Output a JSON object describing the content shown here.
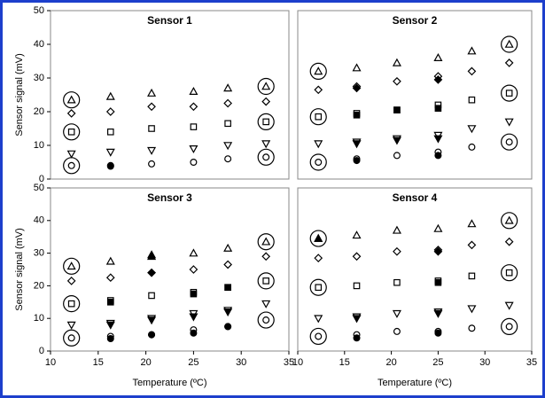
{
  "chart_data": [
    {
      "type": "scatter",
      "title": "Sensor 1",
      "y_label": "Sensor signal (mV)",
      "x": [
        12.2,
        16.3,
        20.6,
        25,
        28.6,
        32.6
      ],
      "xlim": [
        10,
        35
      ],
      "ylim": [
        0,
        50
      ],
      "yticks": [
        0,
        10,
        20,
        30,
        40,
        50
      ],
      "series": [
        {
          "marker": "triangle",
          "color": "#000000",
          "filled": false,
          "circled_ends": true,
          "values": [
            23.5,
            24.5,
            25.5,
            26,
            27,
            27.5
          ]
        },
        {
          "marker": "diamond",
          "color": "#000000",
          "filled": false,
          "circled_ends": false,
          "values": [
            19.5,
            20,
            21.5,
            21.5,
            22.5,
            23
          ]
        },
        {
          "marker": "square",
          "color": "#000000",
          "filled": false,
          "circled_ends": true,
          "values": [
            14,
            14,
            15,
            15.5,
            16.5,
            17
          ]
        },
        {
          "marker": "down-triangle",
          "color": "#000000",
          "filled": false,
          "circled_ends": false,
          "values": [
            7.5,
            8,
            8.5,
            9,
            10,
            10.5
          ]
        },
        {
          "marker": "circle",
          "color": "#000000",
          "filled": false,
          "circled_ends": true,
          "values": [
            4,
            4,
            4.5,
            5,
            6,
            6.5
          ]
        },
        {
          "marker": "circle",
          "color": "#000000",
          "filled": true,
          "circled_ends": false,
          "values": [
            null,
            3.8,
            null,
            null,
            null,
            null
          ]
        }
      ]
    },
    {
      "type": "scatter",
      "title": "Sensor 2",
      "x": [
        12.2,
        16.3,
        20.6,
        25,
        28.6,
        32.6
      ],
      "xlim": [
        10,
        35
      ],
      "ylim": [
        0,
        50
      ],
      "series": [
        {
          "marker": "triangle",
          "color": "#000000",
          "filled": false,
          "circled_ends": true,
          "values": [
            32,
            33,
            34.5,
            36,
            38,
            40
          ]
        },
        {
          "marker": "diamond",
          "color": "#000000",
          "filled": false,
          "circled_ends": false,
          "values": [
            26.5,
            27.5,
            29,
            30.5,
            32,
            34.5
          ]
        },
        {
          "marker": "square",
          "color": "#000000",
          "filled": false,
          "circled_ends": true,
          "values": [
            18.5,
            19.5,
            20.5,
            22,
            23.5,
            25.5
          ]
        },
        {
          "marker": "down-triangle",
          "color": "#000000",
          "filled": false,
          "circled_ends": false,
          "values": [
            10.5,
            11,
            12,
            13,
            15,
            17
          ]
        },
        {
          "marker": "circle",
          "color": "#000000",
          "filled": false,
          "circled_ends": true,
          "values": [
            5,
            6,
            7,
            8,
            9.5,
            11
          ]
        },
        {
          "marker": "diamond",
          "color": "#000000",
          "filled": true,
          "circled_ends": false,
          "values": [
            null,
            27,
            null,
            29.5,
            null,
            null
          ]
        },
        {
          "marker": "square",
          "color": "#000000",
          "filled": true,
          "circled_ends": false,
          "values": [
            null,
            19,
            20.5,
            21,
            null,
            null
          ]
        },
        {
          "marker": "down-triangle",
          "color": "#000000",
          "filled": true,
          "circled_ends": false,
          "values": [
            null,
            10.5,
            11.5,
            12,
            null,
            null
          ]
        },
        {
          "marker": "circle",
          "color": "#000000",
          "filled": true,
          "circled_ends": false,
          "values": [
            null,
            5.5,
            null,
            7,
            null,
            null
          ]
        }
      ]
    },
    {
      "type": "scatter",
      "title": "Sensor 3",
      "y_label": "Sensor signal (mV)",
      "x_label": "Temperature (ºC)",
      "x": [
        12.2,
        16.3,
        20.6,
        25,
        28.6,
        32.6
      ],
      "xlim": [
        10,
        35
      ],
      "ylim": [
        0,
        50
      ],
      "xticks": [
        10,
        15,
        20,
        25,
        30,
        35
      ],
      "yticks": [
        0,
        10,
        20,
        30,
        40,
        50
      ],
      "series": [
        {
          "marker": "triangle",
          "color": "#000000",
          "filled": false,
          "circled_ends": true,
          "values": [
            26,
            27.5,
            29.5,
            30,
            31.5,
            33.5
          ]
        },
        {
          "marker": "diamond",
          "color": "#000000",
          "filled": false,
          "circled_ends": false,
          "values": [
            21.5,
            22.5,
            24,
            25,
            26.5,
            29
          ]
        },
        {
          "marker": "square",
          "color": "#000000",
          "filled": false,
          "circled_ends": true,
          "values": [
            14.5,
            15.5,
            17,
            18,
            19.5,
            21.5
          ]
        },
        {
          "marker": "down-triangle",
          "color": "#000000",
          "filled": false,
          "circled_ends": false,
          "values": [
            8,
            8.5,
            10,
            11.5,
            12.5,
            14.5
          ]
        },
        {
          "marker": "circle",
          "color": "#000000",
          "filled": false,
          "circled_ends": true,
          "values": [
            4,
            4.5,
            5,
            6.5,
            7.5,
            9.5
          ]
        },
        {
          "marker": "triangle",
          "color": "#000000",
          "filled": true,
          "circled_ends": false,
          "values": [
            null,
            null,
            29,
            null,
            null,
            null
          ]
        },
        {
          "marker": "diamond",
          "color": "#000000",
          "filled": true,
          "circled_ends": false,
          "values": [
            null,
            null,
            24,
            null,
            null,
            null
          ]
        },
        {
          "marker": "square",
          "color": "#000000",
          "filled": true,
          "circled_ends": false,
          "values": [
            null,
            15,
            null,
            17.5,
            19.5,
            null
          ]
        },
        {
          "marker": "down-triangle",
          "color": "#000000",
          "filled": true,
          "circled_ends": false,
          "values": [
            null,
            8,
            9.5,
            10.5,
            12,
            null
          ]
        },
        {
          "marker": "circle",
          "color": "#000000",
          "filled": true,
          "circled_ends": false,
          "values": [
            null,
            3.8,
            5,
            5.5,
            7.5,
            null
          ]
        }
      ]
    },
    {
      "type": "scatter",
      "title": "Sensor 4",
      "x_label": "Temperature (ºC)",
      "x": [
        12.2,
        16.3,
        20.6,
        25,
        28.6,
        32.6
      ],
      "xlim": [
        10,
        35
      ],
      "ylim": [
        0,
        50
      ],
      "xticks": [
        10,
        15,
        20,
        25,
        30,
        35
      ],
      "series": [
        {
          "marker": "triangle",
          "color": "#000000",
          "filled": false,
          "circled_ends": true,
          "values": [
            34.5,
            35.5,
            37,
            37.5,
            39,
            40
          ]
        },
        {
          "marker": "diamond",
          "color": "#000000",
          "filled": false,
          "circled_ends": false,
          "values": [
            28.5,
            29,
            30.5,
            31,
            32.5,
            33.5
          ]
        },
        {
          "marker": "square",
          "color": "#000000",
          "filled": false,
          "circled_ends": true,
          "values": [
            19.5,
            20,
            21,
            21.5,
            23,
            24
          ]
        },
        {
          "marker": "down-triangle",
          "color": "#000000",
          "filled": false,
          "circled_ends": false,
          "values": [
            10,
            10.5,
            11.5,
            12,
            13,
            14
          ]
        },
        {
          "marker": "circle",
          "color": "#000000",
          "filled": false,
          "circled_ends": true,
          "values": [
            4.5,
            5,
            6,
            6,
            7,
            7.5
          ]
        },
        {
          "marker": "triangle",
          "color": "#000000",
          "filled": true,
          "circled_ends": false,
          "values": [
            34.5,
            null,
            null,
            null,
            null,
            null
          ]
        },
        {
          "marker": "diamond",
          "color": "#000000",
          "filled": true,
          "circled_ends": false,
          "values": [
            null,
            null,
            null,
            30.5,
            null,
            null
          ]
        },
        {
          "marker": "square",
          "color": "#000000",
          "filled": true,
          "circled_ends": false,
          "values": [
            null,
            null,
            null,
            21,
            null,
            null
          ]
        },
        {
          "marker": "down-triangle",
          "color": "#000000",
          "filled": true,
          "circled_ends": false,
          "values": [
            null,
            10,
            null,
            11.5,
            null,
            null
          ]
        },
        {
          "marker": "circle",
          "color": "#000000",
          "filled": true,
          "circled_ends": false,
          "values": [
            null,
            4,
            null,
            5.5,
            null,
            null
          ]
        }
      ]
    }
  ]
}
